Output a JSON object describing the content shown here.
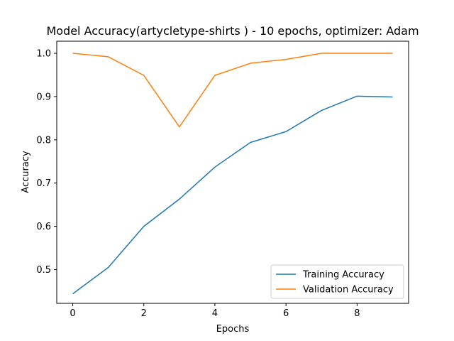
{
  "chart_data": {
    "type": "line",
    "title": "Model Accuracy(artycletype-shirts ) - 10 epochs, optimizer: Adam",
    "xlabel": "Epochs",
    "ylabel": "Accuracy",
    "x": [
      0,
      1,
      2,
      3,
      4,
      5,
      6,
      7,
      8,
      9
    ],
    "xlim": [
      -0.45,
      9.45
    ],
    "ylim": [
      0.422,
      1.028
    ],
    "xticks": [
      0,
      2,
      4,
      6,
      8
    ],
    "yticks": [
      0.5,
      0.6,
      0.7,
      0.8,
      0.9,
      1.0
    ],
    "xtick_labels": [
      "0",
      "2",
      "4",
      "6",
      "8"
    ],
    "ytick_labels": [
      "0.5",
      "0.6",
      "0.7",
      "0.8",
      "0.9",
      "1.0"
    ],
    "grid": false,
    "legend_position": "lower-right",
    "series": [
      {
        "name": "Training Accuracy",
        "color": "#1f77b4",
        "values": [
          0.444,
          0.505,
          0.6,
          0.663,
          0.737,
          0.794,
          0.819,
          0.868,
          0.901,
          0.899
        ]
      },
      {
        "name": "Validation Accuracy",
        "color": "#ff7f0e",
        "values": [
          1.0,
          0.992,
          0.949,
          0.83,
          0.949,
          0.977,
          0.986,
          1.0,
          1.0,
          1.0
        ]
      }
    ]
  }
}
